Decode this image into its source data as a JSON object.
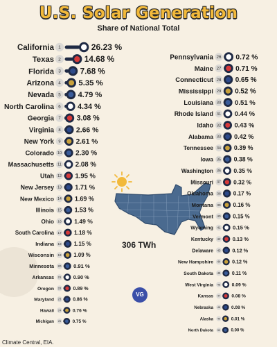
{
  "header": {
    "title": "U.S. Solar Generation",
    "subtitle": "Share of National Total"
  },
  "total_label": "306 TWh",
  "source": "Climate Central, EIA.",
  "logo_text": "VG",
  "colors": {
    "background": "#f7f0e3",
    "title_fill": "#f2b93b",
    "bar_dark": "#1f2a44",
    "map_fill": "#4a6a8f",
    "rank_badge": "#dcdad6",
    "sun": "#f2b93b"
  },
  "chart_data": {
    "type": "bar",
    "title": "U.S. Solar Generation",
    "subtitle": "Share of National Total",
    "unit": "%",
    "series": [
      {
        "states": [
          "California",
          "Texas",
          "Florida",
          "Arizona",
          "Nevada",
          "North Carolina",
          "Georgia",
          "Virginia",
          "New York",
          "Colorado",
          "Massachusetts",
          "Utah",
          "New Jersey",
          "New Mexico",
          "Illinois",
          "Ohio",
          "South Carolina",
          "Indiana",
          "Wisconsin",
          "Minnesota",
          "Arkansas",
          "Oregon",
          "Maryland",
          "Hawaii",
          "Michigan",
          "Pennsylvania",
          "Maine",
          "Connecticut",
          "Mississippi",
          "Louisiana",
          "Rhode Island",
          "Idaho",
          "Alabama",
          "Tennessee",
          "Iowa",
          "Washington",
          "Missouri",
          "Oklahoma",
          "Montana",
          "Vermont",
          "Wyoming",
          "Kentucky",
          "Delaware",
          "New Hampshire",
          "South Dakota",
          "West Virginia",
          "Kansas",
          "Nebraska",
          "Alaska",
          "North Dakota"
        ],
        "ranks": [
          1,
          2,
          3,
          4,
          5,
          6,
          7,
          8,
          9,
          10,
          11,
          12,
          13,
          14,
          15,
          16,
          17,
          18,
          19,
          20,
          21,
          22,
          23,
          24,
          25,
          26,
          27,
          28,
          29,
          30,
          31,
          32,
          33,
          34,
          35,
          36,
          37,
          38,
          39,
          40,
          41,
          42,
          43,
          44,
          45,
          46,
          47,
          48,
          49,
          50
        ],
        "values": [
          26.23,
          14.68,
          7.68,
          5.35,
          4.79,
          4.34,
          3.08,
          2.66,
          2.61,
          2.3,
          2.08,
          1.95,
          1.71,
          1.69,
          1.53,
          1.49,
          1.18,
          1.15,
          1.09,
          0.91,
          0.9,
          0.89,
          0.86,
          0.76,
          0.75,
          0.72,
          0.71,
          0.65,
          0.52,
          0.51,
          0.44,
          0.43,
          0.42,
          0.39,
          0.38,
          0.35,
          0.32,
          0.17,
          0.16,
          0.15,
          0.15,
          0.13,
          0.12,
          0.12,
          0.11,
          0.09,
          0.08,
          0.08,
          0.01,
          0.0
        ],
        "labels": [
          "26.23 %",
          "14.68 %",
          "7.68 %",
          "5.35 %",
          "4.79 %",
          "4.34 %",
          "3.08 %",
          "2.66 %",
          "2.61 %",
          "2.30 %",
          "2.08 %",
          "1.95 %",
          "1.71 %",
          "1.69 %",
          "1.53 %",
          "1.49 %",
          "1.18 %",
          "1.15 %",
          "1.09 %",
          "0.91 %",
          "0.90 %",
          "0.89 %",
          "0.86 %",
          "0.76 %",
          "0.75 %",
          "0.72 %",
          "0.71 %",
          "0.65 %",
          "0.52 %",
          "0.51 %",
          "0.44 %",
          "0.43 %",
          "0.42 %",
          "0.39 %",
          "0.38 %",
          "0.35 %",
          "0.32 %",
          "0.17 %",
          "0.16 %",
          "0.15 %",
          "0.15 %",
          "0.13 %",
          "0.12 %",
          "0.12 %",
          "0.11 %",
          "0.09 %",
          "0.08 %",
          "0.08 %",
          "0.01 %",
          "0.00 %"
        ]
      }
    ]
  }
}
